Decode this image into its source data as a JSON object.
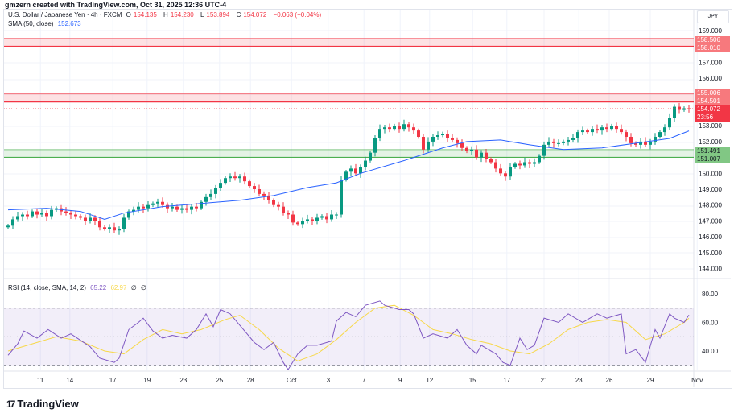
{
  "credit": "gmzern created with TradingView.com, Oct 31, 2025 12:36 UTC-4",
  "legend": {
    "symbol": "U.S. Dollar / Japanese Yen · 4h · FXCM",
    "o_label": "O",
    "o": "154.135",
    "h_label": "H",
    "h": "154.230",
    "l_label": "L",
    "l": "153.894",
    "c_label": "C",
    "c": "154.072",
    "change": "−0.063 (−0.04%)",
    "sma_label": "SMA (50, close)",
    "sma_value": "152.673",
    "rsi_label": "RSI (14, close, SMA, 14, 2)",
    "rsi_value": "65.22",
    "rsi_sma_value": "62.97",
    "rsi_extra1": "∅",
    "rsi_extra2": "∅"
  },
  "currency": "JPY",
  "price_axis": [
    "159.000",
    "157.000",
    "156.000",
    "153.000",
    "152.000",
    "150.000",
    "149.000",
    "148.000",
    "147.000",
    "146.000",
    "145.000",
    "144.000"
  ],
  "rsi_axis": [
    "80.00",
    "60.00",
    "40.00"
  ],
  "price_tags": {
    "zone_top_high": "158.506",
    "zone_top_low": "158.010",
    "zone_mid_high": "155.006",
    "zone_mid_low": "154.501",
    "current": "154.072",
    "countdown": "23:56",
    "zone_low_high": "151.491",
    "zone_low_low": "151.007"
  },
  "colors": {
    "up": "#089981",
    "down": "#f23645",
    "sma": "#2962ff",
    "rsi": "#7e57c2",
    "rsi_sma": "#f7d84a",
    "resistance": "#f23645",
    "support": "#4caf50"
  },
  "time_axis": [
    "11",
    "14",
    "17",
    "19",
    "23",
    "25",
    "28",
    "Oct",
    "3",
    "7",
    "9",
    "12",
    "15",
    "17",
    "21",
    "23",
    "26",
    "29",
    "Nov"
  ],
  "brand": "TradingView",
  "chart_data": {
    "type": "candlestick",
    "interval": "4h",
    "closes": [
      146.7,
      147.1,
      147.3,
      147.4,
      147.3,
      147.6,
      147.4,
      147.5,
      147.3,
      147.7,
      147.8,
      147.6,
      147.5,
      147.4,
      147.3,
      147.2,
      147.0,
      147.2,
      147.0,
      146.6,
      146.5,
      146.6,
      146.4,
      146.5,
      147.2,
      147.6,
      147.7,
      147.9,
      147.8,
      148.0,
      148.1,
      148.2,
      148.0,
      147.8,
      147.9,
      147.7,
      147.8,
      147.7,
      147.9,
      147.8,
      148.2,
      148.5,
      148.7,
      149.1,
      149.4,
      149.7,
      149.8,
      149.7,
      149.8,
      149.5,
      149.2,
      149.0,
      148.7,
      148.6,
      148.3,
      148.0,
      147.9,
      147.5,
      147.4,
      146.9,
      146.8,
      147.0,
      147.1,
      147.0,
      147.2,
      147.3,
      147.1,
      147.4,
      147.4,
      149.6,
      150.1,
      150.3,
      150.0,
      150.4,
      150.8,
      151.3,
      152.2,
      152.8,
      152.9,
      152.8,
      153.0,
      152.8,
      153.1,
      152.9,
      152.7,
      152.3,
      151.5,
      152.0,
      152.3,
      152.4,
      152.5,
      152.2,
      152.1,
      151.9,
      151.6,
      151.4,
      151.5,
      151.0,
      151.3,
      150.9,
      150.7,
      150.3,
      150.0,
      149.8,
      150.4,
      150.6,
      150.5,
      150.7,
      150.6,
      150.7,
      151.1,
      151.8,
      152.0,
      151.9,
      151.9,
      152.0,
      152.1,
      152.2,
      152.6,
      152.7,
      152.6,
      152.8,
      152.7,
      152.9,
      152.8,
      153.0,
      152.8,
      152.6,
      152.3,
      151.9,
      151.8,
      152.0,
      151.8,
      152.0,
      152.3,
      152.6,
      152.9,
      153.5,
      154.2,
      154.0,
      154.1,
      154.07
    ],
    "sma50": [
      [
        0,
        147.7
      ],
      [
        8,
        147.8
      ],
      [
        15,
        147.6
      ],
      [
        20,
        147.1
      ],
      [
        24,
        147.5
      ],
      [
        32,
        147.9
      ],
      [
        40,
        148.1
      ],
      [
        48,
        148.3
      ],
      [
        55,
        148.6
      ],
      [
        62,
        149.1
      ],
      [
        68,
        149.4
      ],
      [
        73,
        150.0
      ],
      [
        82,
        150.8
      ],
      [
        90,
        151.6
      ],
      [
        95,
        152.0
      ],
      [
        102,
        152.1
      ],
      [
        108,
        151.8
      ],
      [
        115,
        151.5
      ],
      [
        123,
        151.6
      ],
      [
        130,
        151.9
      ],
      [
        137,
        152.2
      ],
      [
        141,
        152.673
      ]
    ],
    "zones": [
      {
        "type": "resistance",
        "high": 158.506,
        "low": 158.01
      },
      {
        "type": "resistance",
        "high": 155.006,
        "low": 154.501
      },
      {
        "type": "support",
        "high": 151.491,
        "low": 151.007
      }
    ],
    "ylim": [
      143.5,
      159.5
    ],
    "rsi": [
      [
        0,
        37
      ],
      [
        2,
        45
      ],
      [
        3.3,
        54
      ],
      [
        6,
        49
      ],
      [
        8.3,
        55
      ],
      [
        11,
        49
      ],
      [
        13,
        52
      ],
      [
        17,
        43
      ],
      [
        19,
        35
      ],
      [
        22,
        32
      ],
      [
        23,
        35
      ],
      [
        25,
        55
      ],
      [
        27,
        60
      ],
      [
        28,
        63
      ],
      [
        30,
        54
      ],
      [
        32,
        49
      ],
      [
        34,
        51
      ],
      [
        37,
        49
      ],
      [
        39,
        55
      ],
      [
        41,
        66
      ],
      [
        42.5,
        57
      ],
      [
        44,
        69
      ],
      [
        46,
        66
      ],
      [
        48,
        58
      ],
      [
        51,
        46
      ],
      [
        53,
        41
      ],
      [
        55,
        46
      ],
      [
        57,
        32
      ],
      [
        58,
        27
      ],
      [
        60,
        38
      ],
      [
        62,
        44
      ],
      [
        64,
        44
      ],
      [
        67,
        47
      ],
      [
        68,
        61
      ],
      [
        70,
        67
      ],
      [
        72,
        64
      ],
      [
        74,
        72
      ],
      [
        77,
        75
      ],
      [
        78,
        72
      ],
      [
        81,
        69
      ],
      [
        83,
        69
      ],
      [
        84,
        66
      ],
      [
        86,
        49
      ],
      [
        88,
        52
      ],
      [
        91,
        49
      ],
      [
        93,
        55
      ],
      [
        95,
        44
      ],
      [
        97,
        38
      ],
      [
        98,
        44
      ],
      [
        101,
        38
      ],
      [
        102.5,
        32
      ],
      [
        104,
        30
      ],
      [
        106,
        49
      ],
      [
        107.5,
        41
      ],
      [
        109,
        44
      ],
      [
        111,
        63
      ],
      [
        114,
        60
      ],
      [
        116,
        66
      ],
      [
        119,
        60
      ],
      [
        122,
        66
      ],
      [
        124,
        63
      ],
      [
        127,
        66
      ],
      [
        128,
        38
      ],
      [
        130,
        41
      ],
      [
        132,
        32
      ],
      [
        134,
        55
      ],
      [
        135,
        49
      ],
      [
        137,
        66
      ],
      [
        138,
        63
      ],
      [
        140,
        60
      ],
      [
        141,
        65.22
      ]
    ],
    "rsi_sma": [
      [
        0,
        40
      ],
      [
        5,
        45
      ],
      [
        10,
        50
      ],
      [
        15,
        47
      ],
      [
        20,
        40
      ],
      [
        24,
        38
      ],
      [
        28,
        48
      ],
      [
        32,
        55
      ],
      [
        36,
        52
      ],
      [
        40,
        55
      ],
      [
        45,
        62
      ],
      [
        48,
        65
      ],
      [
        52,
        55
      ],
      [
        56,
        42
      ],
      [
        60,
        33
      ],
      [
        64,
        38
      ],
      [
        68,
        48
      ],
      [
        72,
        60
      ],
      [
        76,
        70
      ],
      [
        80,
        72
      ],
      [
        84,
        65
      ],
      [
        88,
        55
      ],
      [
        92,
        52
      ],
      [
        96,
        48
      ],
      [
        100,
        45
      ],
      [
        104,
        40
      ],
      [
        108,
        38
      ],
      [
        112,
        45
      ],
      [
        116,
        55
      ],
      [
        120,
        60
      ],
      [
        124,
        62
      ],
      [
        128,
        60
      ],
      [
        132,
        48
      ],
      [
        136,
        52
      ],
      [
        140,
        60
      ],
      [
        141,
        62.97
      ]
    ],
    "rsi_bands": [
      70,
      30
    ],
    "rsi_ylim": [
      25,
      85
    ]
  }
}
